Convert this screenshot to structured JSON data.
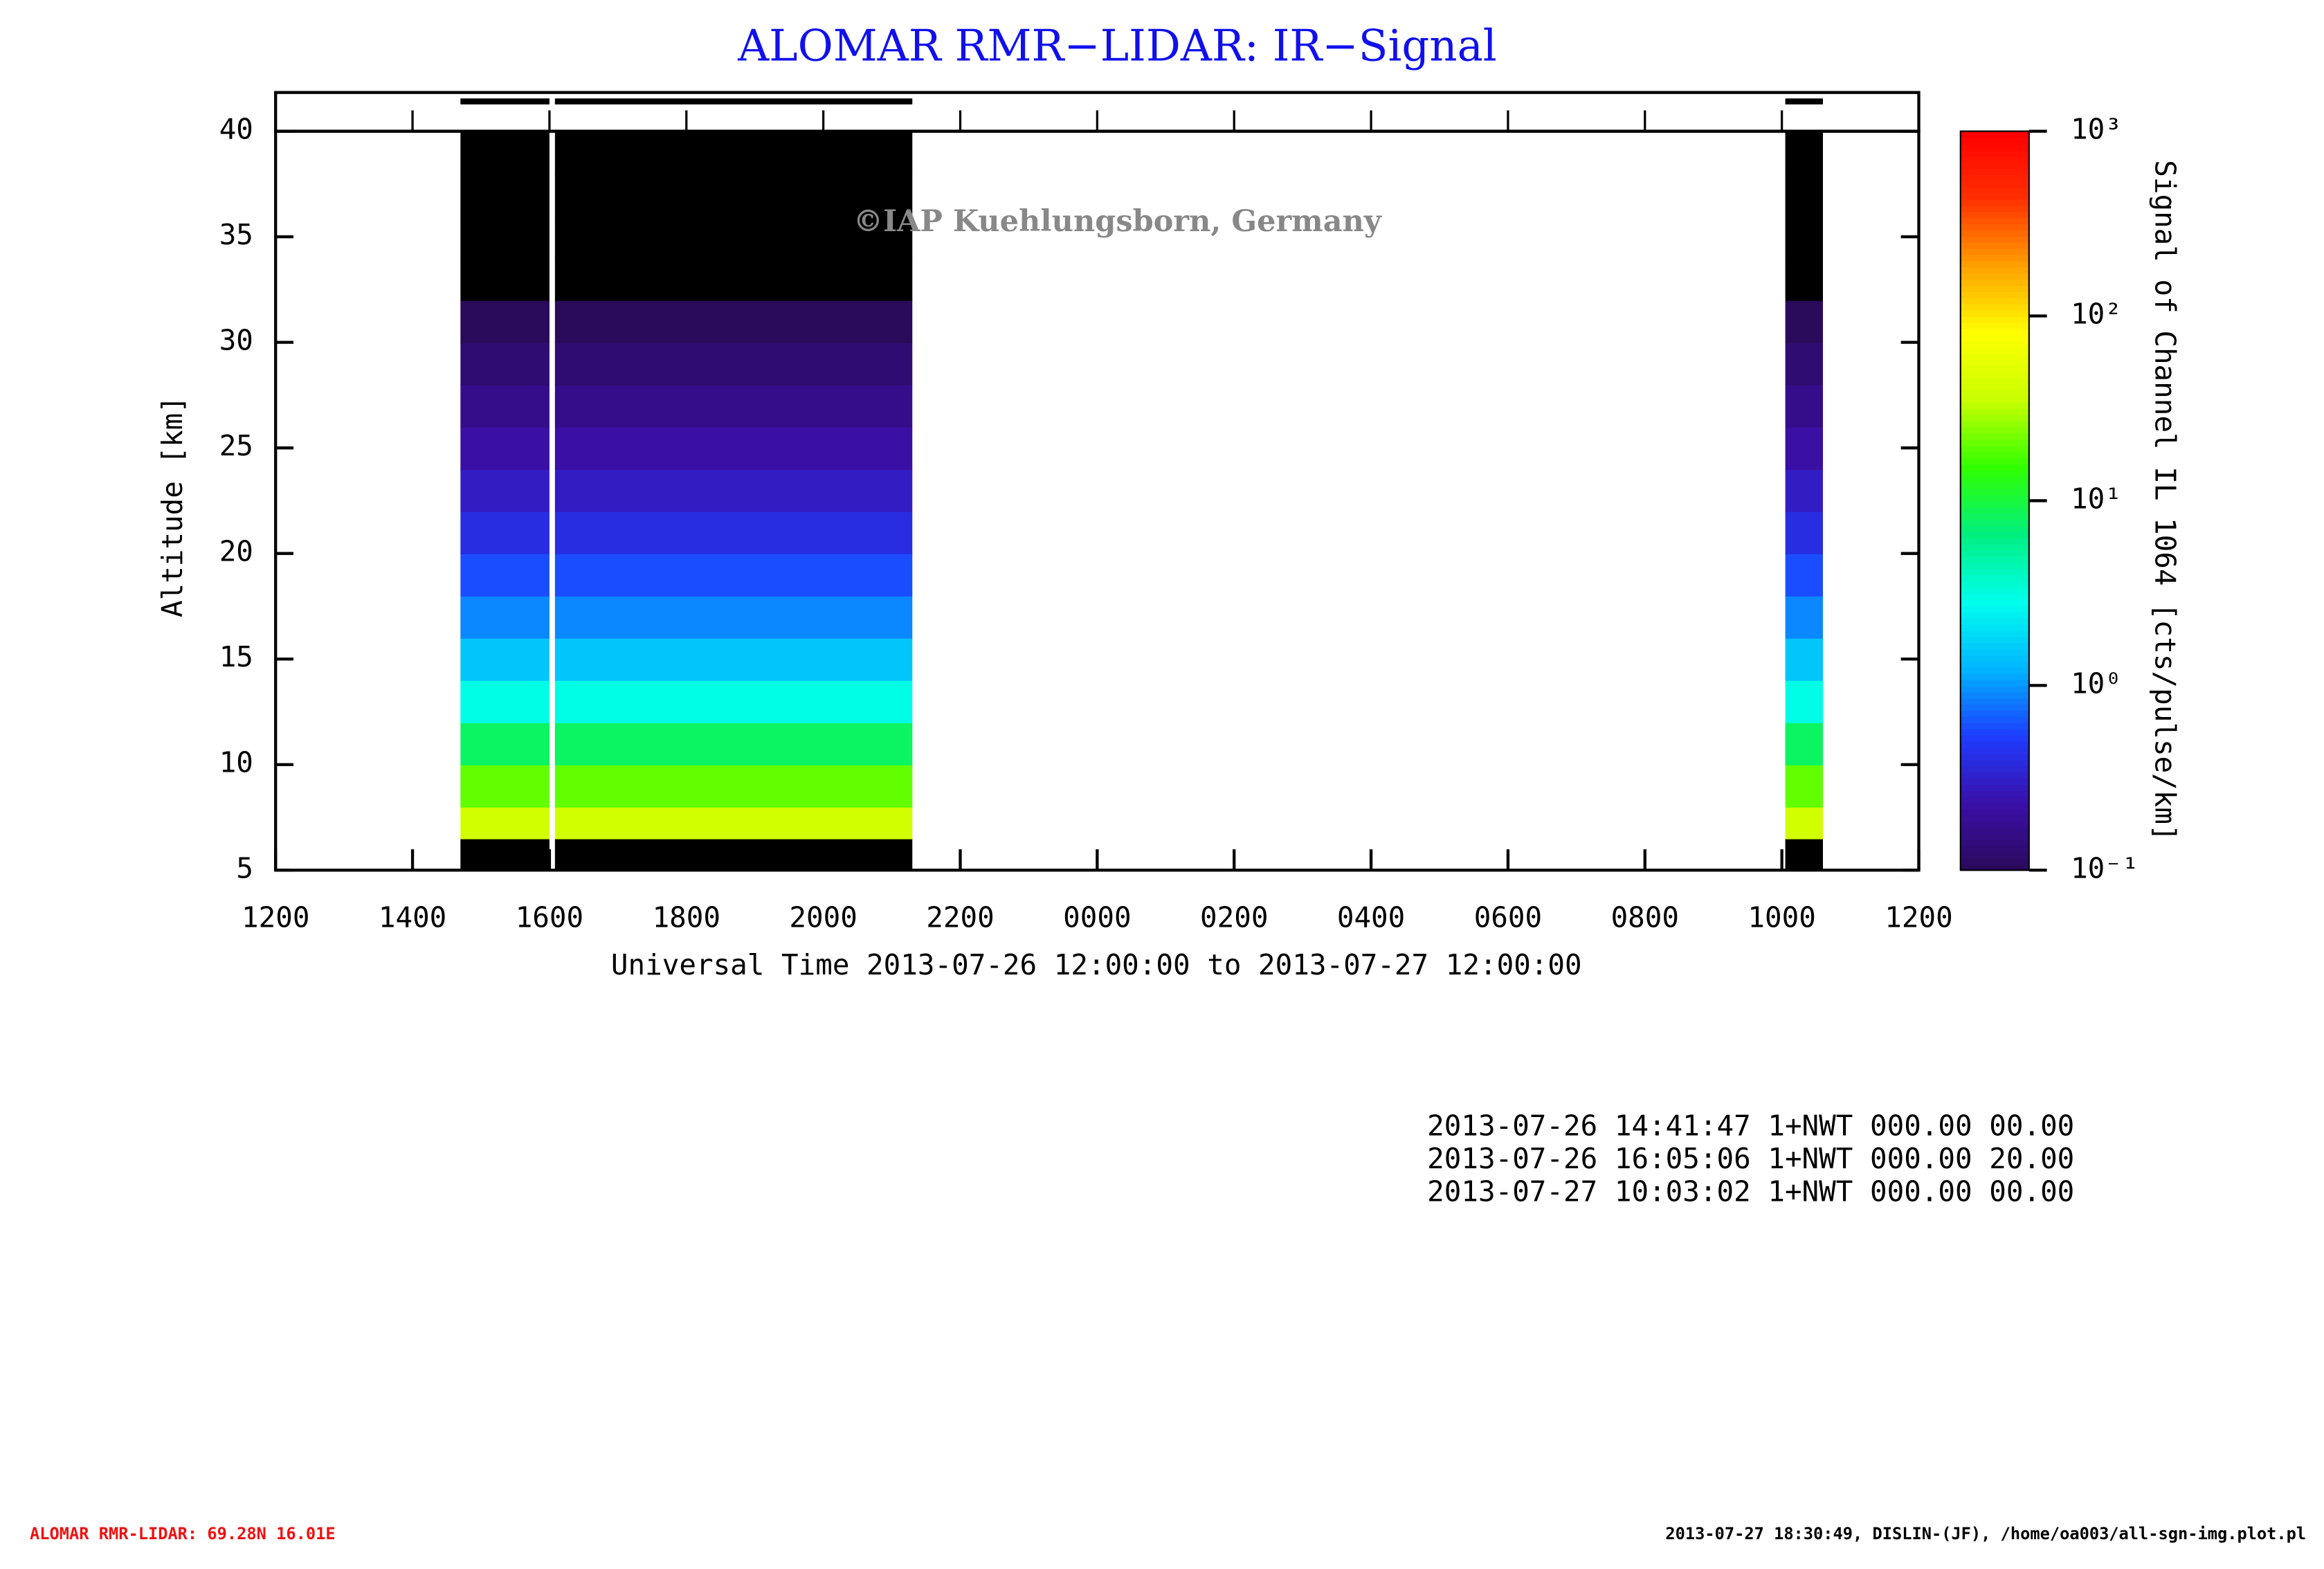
{
  "chart_data": {
    "type": "heatmap",
    "title": "ALOMAR RMR−LIDAR: IR−Signal",
    "watermark": "©IAP Kuehlungsborn, Germany",
    "y_label": "Altitude [km]",
    "x_label": "Universal Time 2013-07-26 12:00:00 to 2013-07-27 12:00:00",
    "colorbar_label": "Signal of Channel IL 1064 [cts/pulse/km]",
    "xlim": [
      0,
      24
    ],
    "xticks": [
      {
        "value": 0,
        "label": "1200"
      },
      {
        "value": 2,
        "label": "1400"
      },
      {
        "value": 4,
        "label": "1600"
      },
      {
        "value": 6,
        "label": "1800"
      },
      {
        "value": 8,
        "label": "2000"
      },
      {
        "value": 10,
        "label": "2200"
      },
      {
        "value": 12,
        "label": "0000"
      },
      {
        "value": 14,
        "label": "0200"
      },
      {
        "value": 16,
        "label": "0400"
      },
      {
        "value": 18,
        "label": "0600"
      },
      {
        "value": 20,
        "label": "0800"
      },
      {
        "value": 22,
        "label": "1000"
      },
      {
        "value": 24,
        "label": "1200"
      }
    ],
    "ylim": [
      5,
      40
    ],
    "yticks": [
      5,
      10,
      15,
      20,
      25,
      30,
      35,
      40
    ],
    "clim": [
      0.1,
      1000
    ],
    "log_color_scale": true,
    "cticks": [
      {
        "value": 0.1,
        "label": "10⁻¹"
      },
      {
        "value": 1,
        "label": "10⁰"
      },
      {
        "value": 10,
        "label": "10¹"
      },
      {
        "value": 100,
        "label": "10²"
      },
      {
        "value": 1000,
        "label": "10³"
      }
    ],
    "colormap": [
      "#2a0a5a",
      "#3b0fa8",
      "#1e3cff",
      "#00b4ff",
      "#00ffee",
      "#00f080",
      "#30ff00",
      "#c8ff00",
      "#ffff00",
      "#ffa000",
      "#ff3000",
      "#ff0000"
    ],
    "blank_below": 6.5,
    "periods": [
      {
        "start": 2.7,
        "end": 4.0
      },
      {
        "start": 4.08,
        "end": 9.3
      },
      {
        "start": 22.05,
        "end": 22.6
      }
    ],
    "profile": {
      "altitude": [
        7,
        9,
        11,
        13,
        15,
        17,
        19,
        21,
        23,
        25,
        27,
        29,
        31,
        33,
        35,
        37,
        39
      ],
      "signal": [
        40,
        20,
        8,
        3,
        1.5,
        0.9,
        0.6,
        0.4,
        0.3,
        0.22,
        0.17,
        0.13,
        0.1,
        0.08,
        0.07,
        0.06,
        0.05
      ]
    },
    "info_lines": [
      "2013-07-26 14:41:47 1+NWT 000.00 00.00",
      "2013-07-26 16:05:06 1+NWT 000.00 20.00",
      "2013-07-27 10:03:02 1+NWT 000.00 00.00"
    ],
    "footer_left": "ALOMAR RMR-LIDAR: 69.28N 16.01E",
    "footer_right": "2013-07-27 18:30:49, DISLIN-(JF), /home/oa003/all-sgn-img.plot.pl"
  }
}
